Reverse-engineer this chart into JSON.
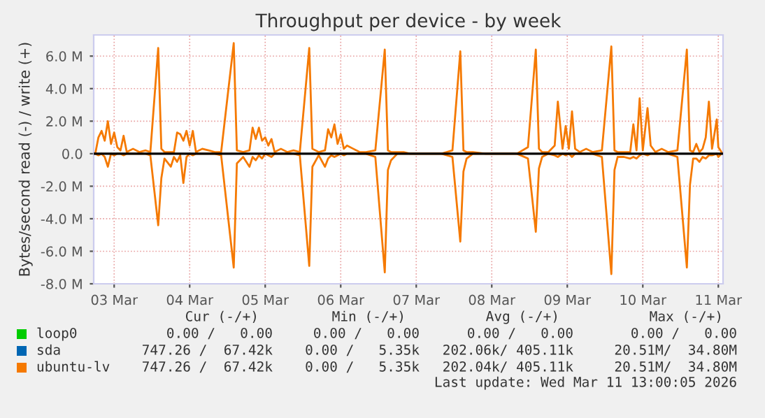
{
  "chart_data": {
    "type": "line",
    "title": "Throughput per device - by week",
    "ylabel": "Bytes/second read (-) / write (+)",
    "x": [
      "2026-03-03T06:00",
      "2026-03-03T07:00",
      "2026-03-03T08:00",
      "2026-03-03T09:00",
      "2026-03-03T10:00",
      "2026-03-03T11:00",
      "2026-03-03T12:00",
      "2026-03-03T13:00",
      "2026-03-03T14:00",
      "2026-03-03T15:00",
      "2026-03-03T16:00",
      "2026-03-03T18:00",
      "2026-03-03T20:00",
      "2026-03-03T22:00",
      "2026-03-03T23:30",
      "2026-03-04T02:00",
      "2026-03-04T03:00",
      "2026-03-04T04:00",
      "2026-03-04T06:00",
      "2026-03-04T07:00",
      "2026-03-04T08:00",
      "2026-03-04T09:00",
      "2026-03-04T10:00",
      "2026-03-04T11:00",
      "2026-03-04T12:00",
      "2026-03-04T13:00",
      "2026-03-04T14:00",
      "2026-03-04T16:00",
      "2026-03-04T18:00",
      "2026-03-04T20:00",
      "2026-03-04T22:00",
      "2026-03-05T02:00",
      "2026-03-05T03:00",
      "2026-03-05T05:00",
      "2026-03-05T07:00",
      "2026-03-05T08:00",
      "2026-03-05T09:00",
      "2026-03-05T10:00",
      "2026-03-05T11:00",
      "2026-03-05T12:00",
      "2026-03-05T13:00",
      "2026-03-05T14:00",
      "2026-03-05T15:00",
      "2026-03-05T17:00",
      "2026-03-05T19:00",
      "2026-03-05T21:00",
      "2026-03-05T23:00",
      "2026-03-06T02:00",
      "2026-03-06T03:00",
      "2026-03-06T05:00",
      "2026-03-06T07:00",
      "2026-03-06T08:00",
      "2026-03-06T09:00",
      "2026-03-06T10:00",
      "2026-03-06T11:00",
      "2026-03-06T12:00",
      "2026-03-06T13:00",
      "2026-03-06T14:00",
      "2026-03-06T16:00",
      "2026-03-06T18:00",
      "2026-03-06T20:00",
      "2026-03-06T23:00",
      "2026-03-07T02:00",
      "2026-03-07T03:00",
      "2026-03-07T04:00",
      "2026-03-07T06:00",
      "2026-03-07T08:00",
      "2026-03-07T10:00",
      "2026-03-07T20:00",
      "2026-03-07T23:30",
      "2026-03-08T02:00",
      "2026-03-08T03:00",
      "2026-03-08T04:00",
      "2026-03-08T06:00",
      "2026-03-08T10:00",
      "2026-03-08T20:00",
      "2026-03-08T23:30",
      "2026-03-09T02:00",
      "2026-03-09T03:00",
      "2026-03-09T04:00",
      "2026-03-09T06:00",
      "2026-03-09T08:00",
      "2026-03-09T09:00",
      "2026-03-09T10:30",
      "2026-03-09T11:30",
      "2026-03-09T12:30",
      "2026-03-09T13:30",
      "2026-03-09T14:30",
      "2026-03-09T16:00",
      "2026-03-09T18:00",
      "2026-03-09T20:00",
      "2026-03-09T23:00",
      "2026-03-10T02:00",
      "2026-03-10T03:00",
      "2026-03-10T04:00",
      "2026-03-10T06:00",
      "2026-03-10T08:00",
      "2026-03-10T09:00",
      "2026-03-10T10:00",
      "2026-03-10T11:00",
      "2026-03-10T12:00",
      "2026-03-10T13:30",
      "2026-03-10T14:30",
      "2026-03-10T16:00",
      "2026-03-10T18:00",
      "2026-03-10T20:00",
      "2026-03-10T23:00",
      "2026-03-11T02:00",
      "2026-03-11T03:00",
      "2026-03-11T04:00",
      "2026-03-11T05:00",
      "2026-03-11T06:00",
      "2026-03-11T07:00",
      "2026-03-11T08:00",
      "2026-03-11T09:00",
      "2026-03-11T10:00",
      "2026-03-11T11:30",
      "2026-03-11T12:00",
      "2026-03-11T13:00"
    ],
    "series": [
      {
        "name": "loop0",
        "color": "#00cc00",
        "values": [
          null,
          null,
          null,
          null,
          null,
          null,
          null,
          null,
          null,
          null,
          null,
          null,
          null,
          null,
          null,
          null,
          null,
          null,
          null,
          null,
          null,
          null,
          null,
          null,
          null,
          null,
          null,
          null,
          null,
          null,
          null,
          null,
          null,
          null,
          null,
          null,
          null,
          null,
          null,
          null,
          null,
          null,
          null,
          null,
          null,
          null,
          null,
          null,
          null,
          null,
          null,
          null,
          null,
          null,
          null,
          null,
          null,
          null,
          null,
          null,
          null,
          null,
          null,
          null,
          null,
          null,
          null,
          null,
          null,
          null,
          null,
          null,
          null,
          null,
          null,
          null,
          null,
          null,
          null,
          null,
          null,
          null,
          null,
          null,
          null,
          null,
          null,
          null,
          null,
          null,
          null,
          null,
          null,
          null,
          null,
          null,
          null,
          null,
          null,
          null,
          null,
          null,
          null,
          null,
          null,
          null,
          null,
          null,
          null,
          null,
          null,
          null,
          null,
          null,
          null,
          null,
          null,
          null,
          null
        ]
      },
      {
        "name": "sda",
        "color": "#0066b3",
        "values": [
          null,
          null,
          null,
          null,
          null,
          null,
          null,
          null,
          null,
          null,
          null,
          null,
          null,
          null,
          null,
          null,
          null,
          null,
          null,
          null,
          null,
          null,
          null,
          null,
          null,
          null,
          null,
          null,
          null,
          null,
          null,
          null,
          null,
          null,
          null,
          null,
          null,
          null,
          null,
          null,
          null,
          null,
          null,
          null,
          null,
          null,
          null,
          null,
          null,
          null,
          null,
          null,
          null,
          null,
          null,
          null,
          null,
          null,
          null,
          null,
          null,
          null,
          null,
          null,
          null,
          null,
          null,
          null,
          null,
          null,
          null,
          null,
          null,
          null,
          null,
          null,
          null,
          null,
          null,
          null,
          null,
          null,
          null,
          null,
          null,
          null,
          null,
          null,
          null,
          null,
          null,
          null,
          null,
          null,
          null,
          null,
          null,
          null,
          null,
          null,
          null,
          null,
          null,
          null,
          null,
          null,
          null,
          null,
          null,
          null,
          null,
          null,
          null,
          null,
          null,
          null,
          null,
          null,
          null
        ]
      },
      {
        "name": "ubuntu-lv",
        "color": "#f57900",
        "values": [
          0,
          1.0,
          1.4,
          0.8,
          2.0,
          0.6,
          1.3,
          0.4,
          0.2,
          1.1,
          0.1,
          0.3,
          0.1,
          0.2,
          0.1,
          6.5,
          0.3,
          0.1,
          0.1,
          0.1,
          1.3,
          1.2,
          0.8,
          1.4,
          0.5,
          1.4,
          0.1,
          0.3,
          0.2,
          0.1,
          0.1,
          6.8,
          0.2,
          0.1,
          0.2,
          1.6,
          0.9,
          1.6,
          0.8,
          1.0,
          0.5,
          0.9,
          0.1,
          0.3,
          0.1,
          0.2,
          0.1,
          6.5,
          0.3,
          0.1,
          0.2,
          1.5,
          1.0,
          1.8,
          0.6,
          1.2,
          0.3,
          0.5,
          0.3,
          0.1,
          0.1,
          0.2,
          6.4,
          0.2,
          0.1,
          0.1,
          0.1,
          0,
          0,
          0.2,
          6.3,
          0.2,
          0.1,
          0.1,
          0,
          0,
          0.4,
          6.4,
          0.3,
          0.1,
          0.1,
          0.5,
          3.2,
          0.3,
          1.7,
          0.3,
          2.6,
          0.3,
          0.1,
          0.3,
          0.1,
          0.2,
          6.6,
          0.2,
          0.1,
          0.1,
          0.1,
          1.8,
          0.2,
          3.4,
          0.2,
          2.8,
          0.5,
          0.1,
          0.3,
          0.1,
          0.2,
          6.4,
          0.2,
          0.1,
          0.6,
          0.1,
          0.3,
          1.0,
          3.2,
          0.3,
          2.1,
          0.4,
          0.1
        ]
      },
      {
        "color": "#f57900",
        "values": [
          0,
          -0.1,
          0,
          -0.2,
          -0.8,
          0,
          -0.1,
          0,
          0,
          -0.1,
          0,
          0,
          0,
          0,
          -0.1,
          -4.4,
          -1.5,
          -0.3,
          -0.8,
          -0.2,
          -0.5,
          -0.1,
          -1.8,
          -0.2,
          0,
          -0.1,
          0,
          0,
          0,
          0,
          -0.1,
          -7.0,
          -0.6,
          -0.2,
          -0.8,
          -0.2,
          -0.4,
          -0.1,
          -0.3,
          0,
          -0.1,
          -0.2,
          0,
          0,
          0,
          0,
          -0.1,
          -6.9,
          -0.8,
          -0.1,
          -0.8,
          -0.3,
          -0.1,
          -0.2,
          -0.1,
          0,
          -0.1,
          0,
          0,
          0,
          0,
          -0.2,
          -7.3,
          -1.0,
          -0.4,
          0,
          0,
          0,
          0,
          -0.2,
          -5.4,
          -1.1,
          -0.3,
          0,
          0,
          0,
          -0.3,
          -4.8,
          -0.9,
          -0.2,
          0,
          -0.1,
          -0.2,
          0,
          -0.1,
          0,
          -0.2,
          0,
          0,
          0,
          0,
          -0.2,
          -7.4,
          -1.0,
          -0.2,
          -0.2,
          -0.3,
          -0.2,
          -0.3,
          -0.1,
          0,
          -0.1,
          0,
          0,
          0,
          0,
          -0.2,
          -7.0,
          -1.9,
          -0.3,
          -0.3,
          -0.5,
          -0.2,
          -0.3,
          -0.1,
          -0.1,
          0,
          -0.2,
          0
        ]
      }
    ],
    "xlim": [
      "2026-03-03T05:30",
      "2026-03-11T13:30"
    ],
    "xticks": [
      {
        "value": "2026-03-03T12:00",
        "label": "03 Mar"
      },
      {
        "value": "2026-03-04T12:00",
        "label": "04 Mar"
      },
      {
        "value": "2026-03-05T12:00",
        "label": "05 Mar"
      },
      {
        "value": "2026-03-06T12:00",
        "label": "06 Mar"
      },
      {
        "value": "2026-03-07T12:00",
        "label": "07 Mar"
      },
      {
        "value": "2026-03-08T12:00",
        "label": "08 Mar"
      },
      {
        "value": "2026-03-09T12:00",
        "label": "09 Mar"
      },
      {
        "value": "2026-03-10T12:00",
        "label": "10 Mar"
      },
      {
        "value": "2026-03-11T12:00",
        "label": "11 Mar"
      }
    ],
    "ylim": [
      -8,
      7.3
    ],
    "yticks": [
      {
        "value": -8,
        "label": "-8.0 M"
      },
      {
        "value": -6,
        "label": "-6.0 M"
      },
      {
        "value": -4,
        "label": "-4.0 M"
      },
      {
        "value": -2,
        "label": "-2.0 M"
      },
      {
        "value": 0,
        "label": "0.0"
      },
      {
        "value": 2,
        "label": "2.0 M"
      },
      {
        "value": 4,
        "label": "4.0 M"
      },
      {
        "value": 6,
        "label": "6.0 M"
      }
    ],
    "ref_lines": [
      {
        "axis": "y",
        "value": 0,
        "color": "#000000"
      }
    ],
    "grid": true,
    "legend": "bottom left",
    "annotations": [
      "Cur (-/+)",
      "Min (-/+)",
      "Avg (-/+)",
      "Max (-/+)",
      "0.00 /   0.00",
      "0.00 /   0.00",
      "0.00 /   0.00",
      "0.00 /   0.00",
      "747.26 /  67.42k",
      "0.00 /   5.35k",
      "202.06k/ 405.11k",
      "20.51M/  34.80M",
      "747.26 /  67.42k",
      "0.00 /   5.35k",
      "202.04k/ 405.11k",
      "20.51M/  34.80M",
      "Last update: Wed Mar 11 13:00:05 2026"
    ]
  }
}
